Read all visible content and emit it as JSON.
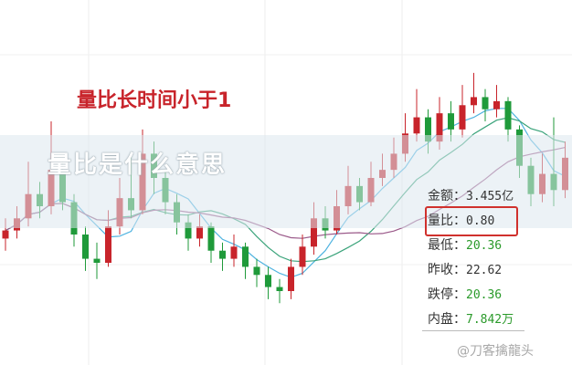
{
  "title": "量比长时间小于1",
  "banner": "量比是什么意思",
  "info_panel": [
    {
      "label": "金额",
      "value": "3.455亿",
      "color": "#333333"
    },
    {
      "label": "量比",
      "value": "0.80",
      "color": "#333333"
    },
    {
      "label": "最低",
      "value": "20.36",
      "color": "#2a9a2a"
    },
    {
      "label": "昨收",
      "value": "22.62",
      "color": "#333333"
    },
    {
      "label": "跌停",
      "value": "20.36",
      "color": "#2a9a2a"
    },
    {
      "label": "内盘",
      "value": "7.842万",
      "color": "#2a9a2a"
    }
  ],
  "watermark": "@刀客擒龍头",
  "chart_data": {
    "type": "candlestick",
    "up_color": "#c8242b",
    "down_color": "#1f9a3a",
    "ma_colors": [
      "#4fb3e0",
      "#3aa37a",
      "#9b5a8a"
    ],
    "ylim": [
      18.5,
      25.5
    ],
    "candles_ohlc": [
      [
        20.5,
        21.0,
        20.2,
        20.7
      ],
      [
        20.7,
        21.3,
        20.5,
        21.0
      ],
      [
        21.0,
        22.4,
        20.8,
        21.6
      ],
      [
        21.6,
        21.9,
        21.0,
        21.3
      ],
      [
        21.3,
        23.4,
        21.1,
        22.2
      ],
      [
        22.2,
        22.5,
        21.2,
        21.4
      ],
      [
        21.4,
        21.6,
        20.3,
        20.6
      ],
      [
        20.6,
        20.8,
        19.7,
        20.0
      ],
      [
        20.0,
        20.4,
        19.5,
        19.9
      ],
      [
        19.9,
        21.2,
        19.8,
        20.8
      ],
      [
        20.8,
        22.0,
        20.6,
        21.5
      ],
      [
        21.5,
        22.6,
        21.0,
        21.2
      ],
      [
        21.2,
        23.2,
        21.1,
        22.6
      ],
      [
        22.6,
        22.9,
        21.6,
        22.0
      ],
      [
        22.0,
        22.2,
        21.1,
        21.4
      ],
      [
        21.4,
        21.6,
        20.6,
        20.9
      ],
      [
        20.9,
        21.1,
        20.2,
        20.5
      ],
      [
        20.5,
        21.1,
        20.3,
        20.8
      ],
      [
        20.8,
        20.9,
        19.9,
        20.2
      ],
      [
        20.2,
        20.4,
        19.7,
        20.0
      ],
      [
        20.0,
        20.6,
        19.8,
        20.3
      ],
      [
        20.3,
        20.4,
        19.5,
        19.8
      ],
      [
        19.8,
        20.0,
        19.3,
        19.6
      ],
      [
        19.6,
        19.8,
        19.0,
        19.3
      ],
      [
        19.3,
        19.5,
        18.9,
        19.2
      ],
      [
        19.2,
        20.0,
        19.0,
        19.8
      ],
      [
        19.8,
        20.6,
        19.6,
        20.3
      ],
      [
        20.3,
        21.4,
        20.1,
        21.0
      ],
      [
        21.0,
        21.3,
        20.5,
        20.7
      ],
      [
        20.7,
        21.7,
        20.6,
        21.3
      ],
      [
        21.3,
        22.3,
        21.1,
        21.8
      ],
      [
        21.8,
        22.0,
        21.2,
        21.4
      ],
      [
        21.4,
        22.4,
        21.3,
        22.0
      ],
      [
        22.0,
        22.6,
        21.8,
        22.2
      ],
      [
        22.2,
        23.0,
        22.0,
        22.6
      ],
      [
        22.6,
        23.6,
        22.4,
        23.1
      ],
      [
        23.1,
        24.2,
        22.9,
        23.5
      ],
      [
        23.5,
        23.7,
        22.6,
        22.9
      ],
      [
        22.9,
        24.0,
        22.7,
        23.6
      ],
      [
        23.6,
        23.9,
        22.9,
        23.2
      ],
      [
        23.2,
        24.3,
        23.0,
        23.8
      ],
      [
        23.8,
        24.6,
        23.6,
        24.0
      ],
      [
        24.0,
        24.2,
        23.4,
        23.7
      ],
      [
        23.7,
        24.3,
        23.5,
        23.9
      ],
      [
        23.9,
        24.0,
        22.9,
        23.2
      ],
      [
        23.2,
        23.3,
        22.0,
        22.3
      ],
      [
        22.3,
        22.5,
        21.3,
        21.6
      ],
      [
        21.6,
        22.6,
        21.4,
        22.1
      ],
      [
        22.1,
        23.5,
        21.3,
        21.7
      ],
      [
        21.7,
        22.9,
        21.5,
        22.5
      ]
    ]
  }
}
